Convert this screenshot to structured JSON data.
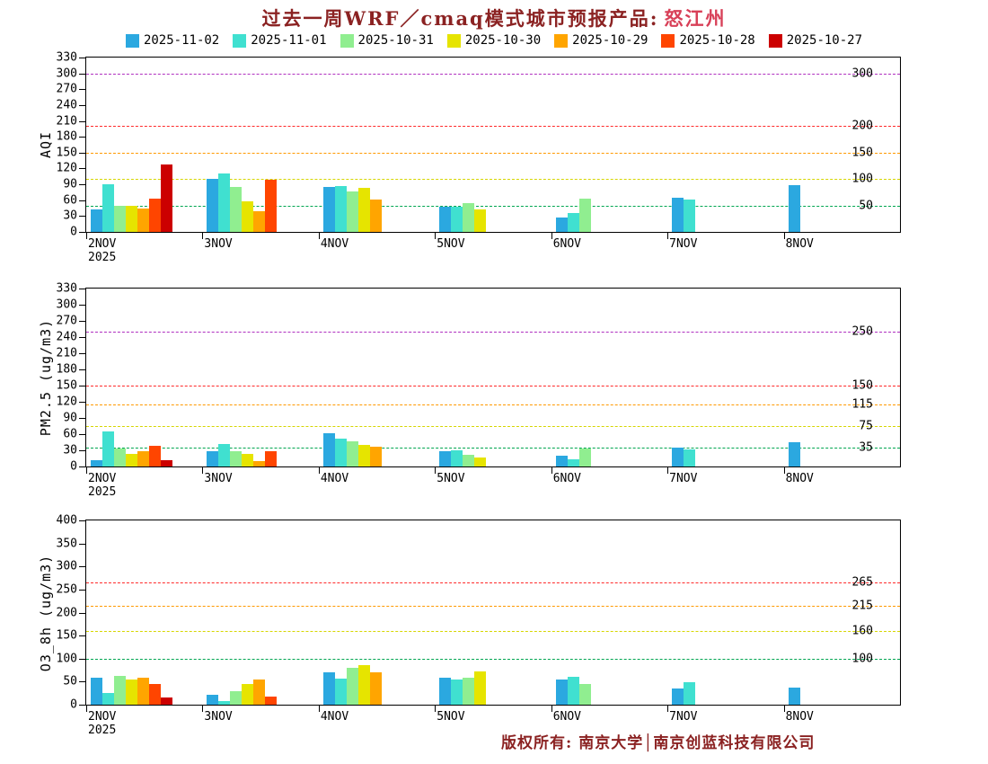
{
  "title": {
    "prefix": "过去一周WRF／cmaq模式城市预报产品:",
    "city": "怒江州"
  },
  "legend": [
    {
      "label": "2025-11-02",
      "color": "#2BA8E0"
    },
    {
      "label": "2025-11-01",
      "color": "#40E0D0"
    },
    {
      "label": "2025-10-31",
      "color": "#90EE90"
    },
    {
      "label": "2025-10-30",
      "color": "#E6E400"
    },
    {
      "label": "2025-10-29",
      "color": "#FFA500"
    },
    {
      "label": "2025-10-28",
      "color": "#FF4500"
    },
    {
      "label": "2025-10-27",
      "color": "#CC0000"
    }
  ],
  "x_first_year": "2025",
  "footer": "版权所有: 南京大学│南京创蓝科技有限公司",
  "chart_data": [
    {
      "type": "bar",
      "title": "AQI forecast, past week runs",
      "ylabel": "AQI",
      "ylim": [
        0,
        330
      ],
      "ytick_step": 30,
      "grid": "colored dashed threshold lines",
      "legend_position": "top",
      "categories": [
        "2NOV",
        "3NOV",
        "4NOV",
        "5NOV",
        "6NOV",
        "7NOV",
        "8NOV"
      ],
      "thresholds": [
        {
          "value": 50,
          "color": "#00A550"
        },
        {
          "value": 100,
          "color": "#D6D600"
        },
        {
          "value": 150,
          "color": "#FF9900"
        },
        {
          "value": 200,
          "color": "#FF2A2A"
        },
        {
          "value": 300,
          "color": "#B030C0"
        }
      ],
      "series": [
        {
          "name": "2025-11-02",
          "values": [
            42,
            100,
            85,
            48,
            27,
            65,
            88
          ]
        },
        {
          "name": "2025-11-01",
          "values": [
            90,
            110,
            87,
            48,
            35,
            62,
            null
          ]
        },
        {
          "name": "2025-10-31",
          "values": [
            50,
            85,
            77,
            55,
            63,
            null,
            null
          ]
        },
        {
          "name": "2025-10-30",
          "values": [
            50,
            58,
            84,
            42,
            null,
            null,
            null
          ]
        },
        {
          "name": "2025-10-29",
          "values": [
            45,
            40,
            62,
            null,
            null,
            null,
            null
          ]
        },
        {
          "name": "2025-10-28",
          "values": [
            63,
            98,
            null,
            null,
            null,
            null,
            null
          ]
        },
        {
          "name": "2025-10-27",
          "values": [
            128,
            null,
            null,
            null,
            null,
            null,
            null
          ]
        }
      ]
    },
    {
      "type": "bar",
      "title": "PM2.5 forecast, past week runs",
      "ylabel": "PM2.5 (ug/m3)",
      "ylim": [
        0,
        330
      ],
      "ytick_step": 30,
      "grid": "colored dashed threshold lines",
      "legend_position": "top",
      "categories": [
        "2NOV",
        "3NOV",
        "4NOV",
        "5NOV",
        "6NOV",
        "7NOV",
        "8NOV"
      ],
      "thresholds": [
        {
          "value": 35,
          "color": "#00A550"
        },
        {
          "value": 75,
          "color": "#D6D600"
        },
        {
          "value": 115,
          "color": "#FF9900"
        },
        {
          "value": 150,
          "color": "#FF2A2A"
        },
        {
          "value": 250,
          "color": "#B030C0"
        }
      ],
      "series": [
        {
          "name": "2025-11-02",
          "values": [
            12,
            28,
            62,
            28,
            20,
            35,
            45
          ]
        },
        {
          "name": "2025-11-01",
          "values": [
            65,
            42,
            52,
            30,
            14,
            32,
            null
          ]
        },
        {
          "name": "2025-10-31",
          "values": [
            34,
            28,
            47,
            21,
            34,
            null,
            null
          ]
        },
        {
          "name": "2025-10-30",
          "values": [
            24,
            24,
            40,
            17,
            null,
            null,
            null
          ]
        },
        {
          "name": "2025-10-29",
          "values": [
            28,
            10,
            37,
            null,
            null,
            null,
            null
          ]
        },
        {
          "name": "2025-10-28",
          "values": [
            38,
            28,
            null,
            null,
            null,
            null,
            null
          ]
        },
        {
          "name": "2025-10-27",
          "values": [
            12,
            null,
            null,
            null,
            null,
            null,
            null
          ]
        }
      ]
    },
    {
      "type": "bar",
      "title": "O3_8h forecast, past week runs",
      "ylabel": "O3_8h (ug/m3)",
      "ylim": [
        0,
        400
      ],
      "ytick_step": 50,
      "grid": "colored dashed threshold lines",
      "legend_position": "top",
      "categories": [
        "2NOV",
        "3NOV",
        "4NOV",
        "5NOV",
        "6NOV",
        "7NOV",
        "8NOV"
      ],
      "thresholds": [
        {
          "value": 100,
          "color": "#00A550"
        },
        {
          "value": 160,
          "color": "#D6D600"
        },
        {
          "value": 215,
          "color": "#FF9900"
        },
        {
          "value": 265,
          "color": "#FF2A2A"
        }
      ],
      "series": [
        {
          "name": "2025-11-02",
          "values": [
            58,
            22,
            70,
            58,
            55,
            35,
            38
          ]
        },
        {
          "name": "2025-11-01",
          "values": [
            25,
            8,
            57,
            55,
            60,
            48,
            null
          ]
        },
        {
          "name": "2025-10-31",
          "values": [
            63,
            30,
            80,
            58,
            44,
            null,
            null
          ]
        },
        {
          "name": "2025-10-30",
          "values": [
            55,
            45,
            85,
            72,
            null,
            null,
            null
          ]
        },
        {
          "name": "2025-10-29",
          "values": [
            58,
            55,
            70,
            null,
            null,
            null,
            null
          ]
        },
        {
          "name": "2025-10-28",
          "values": [
            45,
            18,
            null,
            null,
            null,
            null,
            null
          ]
        },
        {
          "name": "2025-10-27",
          "values": [
            15,
            null,
            null,
            null,
            null,
            null,
            null
          ]
        }
      ]
    }
  ]
}
